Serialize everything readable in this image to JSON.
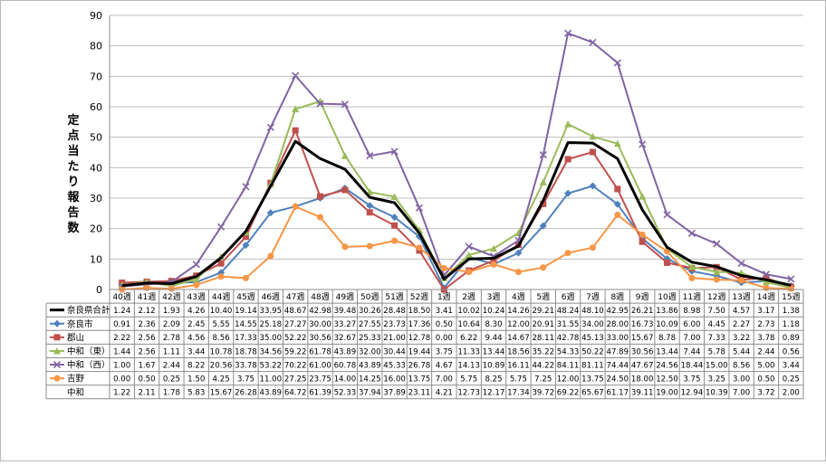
{
  "chart_data": {
    "type": "line",
    "title": "",
    "xlabel": "",
    "ylabel": "定点当たり報告数",
    "ylim": [
      0,
      90
    ],
    "yticks": [
      0,
      10,
      20,
      30,
      40,
      50,
      60,
      70,
      80,
      90
    ],
    "grid": "horizontal",
    "legend": "data-table",
    "categories": [
      "40週",
      "41週",
      "42週",
      "43週",
      "44週",
      "45週",
      "46週",
      "47週",
      "48週",
      "49週",
      "50週",
      "51週",
      "52週",
      "1週",
      "2週",
      "3週",
      "4週",
      "5週",
      "6週",
      "7週",
      "8週",
      "9週",
      "10週",
      "11週",
      "12週",
      "13週",
      "14週",
      "15週"
    ],
    "series": [
      {
        "name": "奈良県合計",
        "color": "#000000",
        "width": 3,
        "marker": "none",
        "values": [
          1.24,
          2.12,
          1.93,
          4.26,
          10.4,
          19.14,
          33.95,
          48.67,
          42.98,
          39.48,
          30.26,
          28.48,
          18.5,
          3.41,
          10.02,
          10.24,
          14.26,
          29.21,
          48.24,
          48.1,
          42.95,
          26.21,
          13.86,
          8.98,
          7.5,
          4.57,
          3.17,
          1.38
        ]
      },
      {
        "name": "奈良市",
        "color": "#4f81bd",
        "width": 2,
        "marker": "diamond",
        "values": [
          0.91,
          2.36,
          2.09,
          2.45,
          5.55,
          14.55,
          25.18,
          27.27,
          30.0,
          33.27,
          27.55,
          23.73,
          17.36,
          0.5,
          10.64,
          8.3,
          12.0,
          20.91,
          31.55,
          34.0,
          28.0,
          16.73,
          10.09,
          6.0,
          4.45,
          2.27,
          2.73,
          1.18
        ]
      },
      {
        "name": "郡山",
        "color": "#c0504d",
        "width": 2,
        "marker": "square",
        "values": [
          2.22,
          2.56,
          2.78,
          4.56,
          8.56,
          17.33,
          35.0,
          52.22,
          30.56,
          32.67,
          25.33,
          21.0,
          12.78,
          0.0,
          6.22,
          9.44,
          14.67,
          28.11,
          42.78,
          45.13,
          33.0,
          15.67,
          8.78,
          7.0,
          7.33,
          3.22,
          3.78,
          0.89
        ]
      },
      {
        "name": "中和（東）",
        "color": "#9bbb59",
        "width": 2,
        "marker": "triangle",
        "values": [
          1.44,
          2.56,
          1.11,
          3.44,
          10.78,
          18.78,
          34.56,
          59.22,
          61.78,
          43.89,
          32.0,
          30.44,
          19.44,
          3.75,
          11.33,
          13.44,
          18.56,
          35.22,
          54.33,
          50.22,
          47.89,
          30.56,
          13.44,
          7.44,
          5.78,
          5.44,
          2.44,
          0.56
        ]
      },
      {
        "name": "中和（西）",
        "color": "#8064a2",
        "width": 2,
        "marker": "x",
        "values": [
          1.0,
          1.67,
          2.44,
          8.22,
          20.56,
          33.78,
          53.22,
          70.22,
          61.0,
          60.78,
          43.89,
          45.33,
          26.78,
          4.67,
          14.13,
          10.89,
          16.11,
          44.22,
          84.11,
          81.11,
          74.44,
          47.67,
          24.56,
          18.44,
          15.0,
          8.56,
          5.0,
          3.44
        ]
      },
      {
        "name": "吉野",
        "color": "#f79646",
        "width": 2,
        "marker": "circle",
        "values": [
          0.0,
          0.5,
          0.25,
          1.5,
          4.25,
          3.75,
          11.0,
          27.25,
          23.75,
          14.0,
          14.25,
          16.0,
          13.75,
          7.0,
          5.75,
          8.25,
          5.75,
          7.25,
          12.0,
          13.75,
          24.5,
          18.0,
          12.5,
          3.75,
          3.25,
          3.0,
          0.5,
          0.25
        ]
      },
      {
        "name": "中和",
        "color": "",
        "width": 0,
        "marker": "none",
        "plotted": false,
        "values": [
          1.22,
          2.11,
          1.78,
          5.83,
          15.67,
          26.28,
          43.89,
          64.72,
          61.39,
          52.33,
          37.94,
          37.89,
          23.11,
          4.21,
          12.73,
          12.17,
          17.34,
          39.72,
          69.22,
          65.67,
          61.17,
          39.11,
          19.0,
          12.94,
          10.39,
          7.0,
          3.72,
          2.0
        ]
      }
    ]
  }
}
